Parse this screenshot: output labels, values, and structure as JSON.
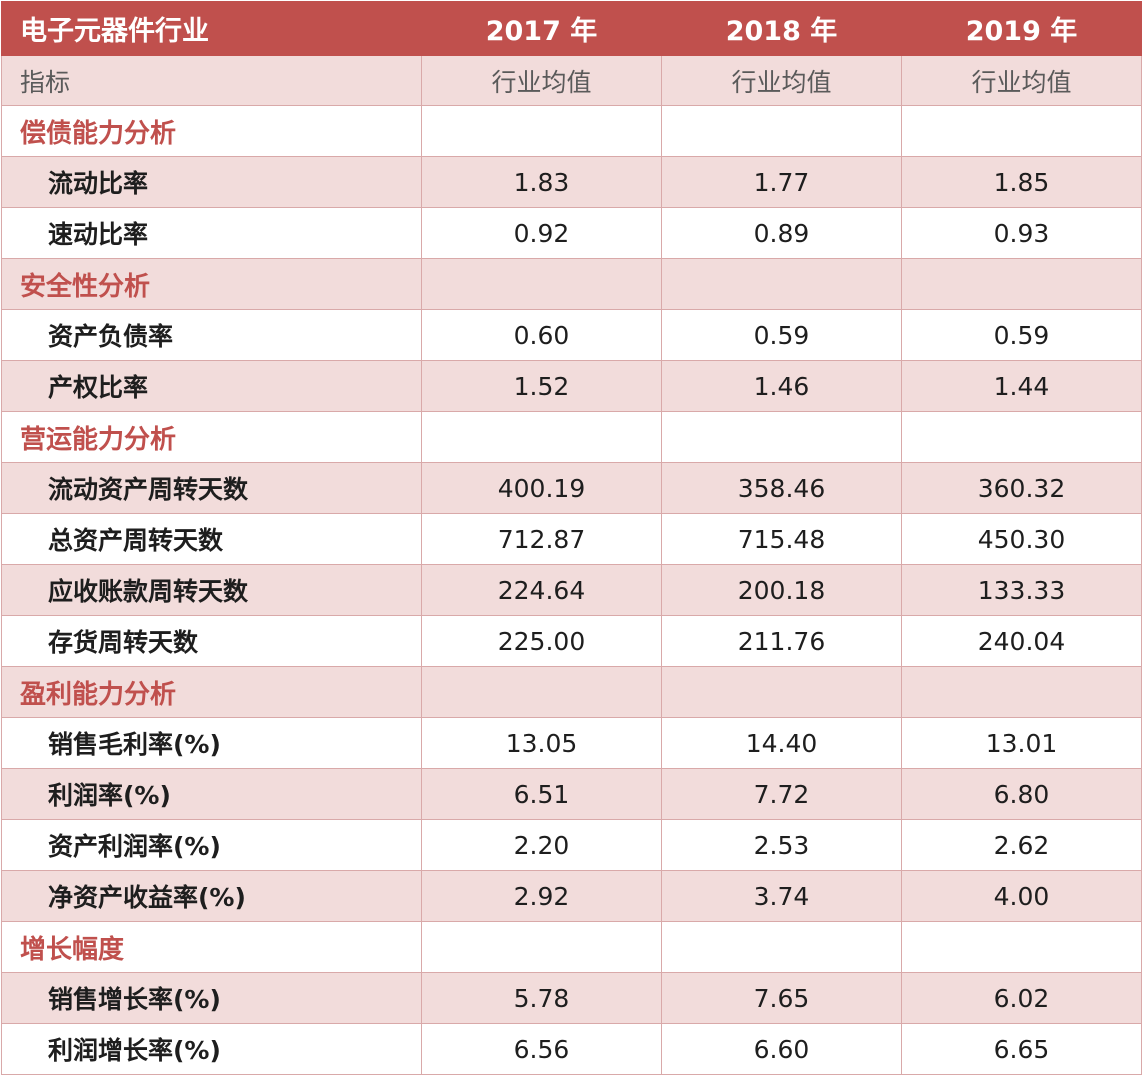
{
  "header": {
    "industry": "电子元器件行业",
    "years": [
      "2017 年",
      "2018 年",
      "2019 年"
    ]
  },
  "subheader": {
    "indicator": "指标",
    "metric": [
      "行业均值",
      "行业均值",
      "行业均值"
    ]
  },
  "sections": [
    {
      "title": "偿债能力分析",
      "rows": [
        {
          "label": "流动比率",
          "values": [
            "1.83",
            "1.77",
            "1.85"
          ]
        },
        {
          "label": "速动比率",
          "values": [
            "0.92",
            "0.89",
            "0.93"
          ]
        }
      ]
    },
    {
      "title": "安全性分析",
      "rows": [
        {
          "label": "资产负债率",
          "values": [
            "0.60",
            "0.59",
            "0.59"
          ]
        },
        {
          "label": "产权比率",
          "values": [
            "1.52",
            "1.46",
            "1.44"
          ]
        }
      ]
    },
    {
      "title": "营运能力分析",
      "rows": [
        {
          "label": "流动资产周转天数",
          "values": [
            "400.19",
            "358.46",
            "360.32"
          ]
        },
        {
          "label": "总资产周转天数",
          "values": [
            "712.87",
            "715.48",
            "450.30"
          ]
        },
        {
          "label": "应收账款周转天数",
          "values": [
            "224.64",
            "200.18",
            "133.33"
          ]
        },
        {
          "label": "存货周转天数",
          "values": [
            "225.00",
            "211.76",
            "240.04"
          ]
        }
      ]
    },
    {
      "title": "盈利能力分析",
      "rows": [
        {
          "label": "销售毛利率(%)",
          "values": [
            "13.05",
            "14.40",
            "13.01"
          ]
        },
        {
          "label": "利润率(%)",
          "values": [
            "6.51",
            "7.72",
            "6.80"
          ]
        },
        {
          "label": "资产利润率(%)",
          "values": [
            "2.20",
            "2.53",
            "2.62"
          ]
        },
        {
          "label": "净资产收益率(%)",
          "values": [
            "2.92",
            "3.74",
            "4.00"
          ]
        }
      ]
    },
    {
      "title": "增长幅度",
      "rows": [
        {
          "label": "销售增长率(%)",
          "values": [
            "5.78",
            "7.65",
            "6.02"
          ]
        },
        {
          "label": "利润增长率(%)",
          "values": [
            "6.56",
            "6.60",
            "6.65"
          ]
        }
      ]
    }
  ],
  "colors": {
    "header_bg": "#c0504d",
    "shade_bg": "#f2dcdb",
    "section_text": "#c0504d",
    "grid": "#d9a9a9"
  }
}
